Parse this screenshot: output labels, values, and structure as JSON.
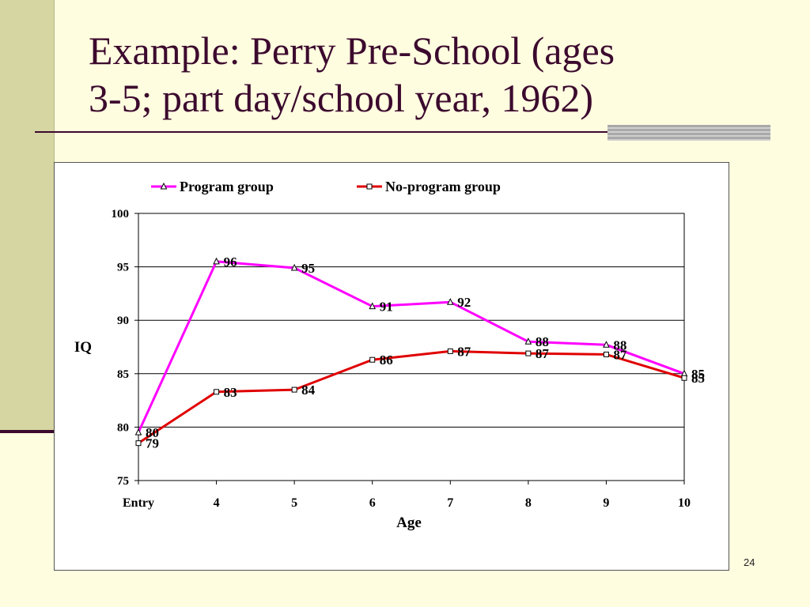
{
  "slide": {
    "title_line1": "Example: Perry Pre-School (ages",
    "title_line2": "3-5; part day/school year, 1962)",
    "page_number": "24"
  },
  "colors": {
    "program": "#ff00ff",
    "no_program": "#e00000",
    "title": "#3c0a2e"
  },
  "chart_data": {
    "type": "line",
    "title": "",
    "xlabel": "Age",
    "ylabel": "IQ",
    "categories": [
      "Entry",
      "4",
      "5",
      "6",
      "7",
      "8",
      "9",
      "10"
    ],
    "ylim": [
      75,
      100
    ],
    "yticks": [
      "75",
      "80",
      "85",
      "90",
      "95",
      "100"
    ],
    "grid": "horizontal",
    "legend_position": "top",
    "series": [
      {
        "name": "Program group",
        "marker": "triangle",
        "values": [
          79.5,
          95.5,
          94.9,
          91.3,
          91.7,
          88.0,
          87.7,
          85.0
        ],
        "labels": [
          "80",
          "96",
          "95",
          "91",
          "92",
          "88",
          "88",
          "85"
        ]
      },
      {
        "name": "No-program group",
        "marker": "square",
        "values": [
          78.5,
          83.3,
          83.5,
          86.3,
          87.1,
          86.9,
          86.8,
          84.6
        ],
        "labels": [
          "79",
          "83",
          "84",
          "86",
          "87",
          "87",
          "87",
          "85"
        ]
      }
    ]
  }
}
